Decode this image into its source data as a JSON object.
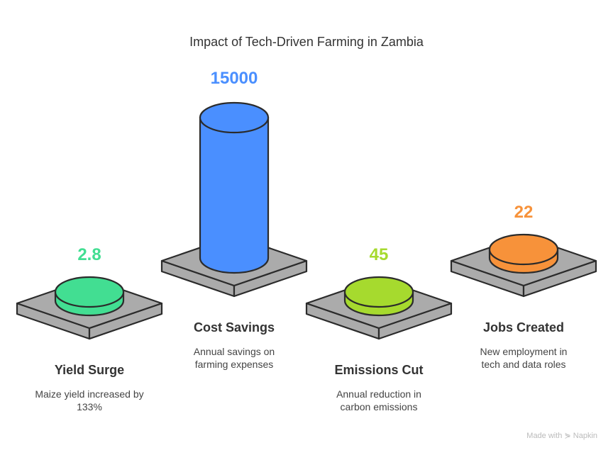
{
  "title": "Impact of Tech-Driven Farming in Zambia",
  "items": [
    {
      "value": "2.8",
      "label": "Yield Surge",
      "desc": [
        "Maize yield increased by",
        "133%"
      ],
      "color": "#42DE92"
    },
    {
      "value": "15000",
      "label": "Cost Savings",
      "desc": [
        "Annual savings on",
        "farming expenses"
      ],
      "color": "#4A8FFF"
    },
    {
      "value": "45",
      "label": "Emissions Cut",
      "desc": [
        "Annual reduction in",
        "carbon emissions"
      ],
      "color": "#A6DA2E"
    },
    {
      "value": "22",
      "label": "Jobs Created",
      "desc": [
        "New employment in",
        "tech and data roles"
      ],
      "color": "#F7923A"
    }
  ],
  "platform_color": "#ABABAB",
  "watermark": "Made with Napkin"
}
